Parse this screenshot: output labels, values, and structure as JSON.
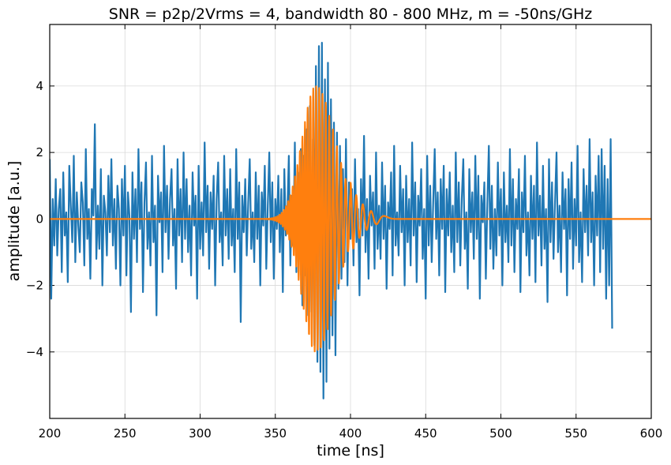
{
  "chart_data": {
    "type": "line",
    "title": "SNR = p2p/2Vrms = 4, bandwidth 80 - 800 MHz, m = -50ns/GHz",
    "xlabel": "time [ns]",
    "ylabel": "amplitude [a.u.]",
    "xlim": [
      200,
      600
    ],
    "ylim": [
      -6.0,
      5.85
    ],
    "x_ticks": [
      200,
      250,
      300,
      350,
      400,
      450,
      500,
      550,
      600
    ],
    "x_tick_labels": [
      "200",
      "250",
      "300",
      "350",
      "400",
      "450",
      "500",
      "550",
      "600"
    ],
    "y_ticks": [
      -4,
      -2,
      0,
      2,
      4
    ],
    "y_tick_labels": [
      "−4",
      "−2",
      "0",
      "2",
      "4"
    ],
    "grid": true,
    "legend": "none",
    "series": [
      {
        "color": "#1f77b4",
        "description_of_shape": "broadband noise around 0 with a dispersed pulse near 375 ns",
        "x_start": 200,
        "x_step": 1,
        "values": [
          1.8,
          -2.4,
          0.6,
          -0.8,
          1.2,
          -1.1,
          0.3,
          0.9,
          -1.6,
          1.4,
          -0.5,
          0.2,
          -1.9,
          1.6,
          0.4,
          -0.7,
          1.9,
          -1.3,
          0.8,
          -0.2,
          -1.0,
          1.1,
          0.5,
          -1.4,
          2.1,
          -0.6,
          0.3,
          -1.8,
          0.9,
          0.1,
          2.85,
          -1.2,
          0.4,
          -0.9,
          1.5,
          -2.0,
          0.7,
          0.2,
          -1.1,
          1.3,
          -0.4,
          1.8,
          -0.8,
          0.6,
          -1.5,
          1.0,
          0.3,
          -2.0,
          1.2,
          -0.5,
          1.6,
          -1.7,
          0.8,
          0.1,
          -2.8,
          1.4,
          -0.6,
          0.9,
          -1.3,
          2.1,
          -0.3,
          1.1,
          -2.2,
          0.5,
          1.7,
          -0.9,
          0.2,
          -1.4,
          1.9,
          -0.7,
          0.4,
          -2.9,
          1.3,
          -0.1,
          0.8,
          -1.6,
          2.2,
          -0.4,
          1.0,
          -1.2,
          0.6,
          1.5,
          -0.8,
          0.3,
          -2.1,
          1.8,
          -0.5,
          0.9,
          -1.3,
          2.0,
          -0.6,
          1.2,
          -1.0,
          0.4,
          -1.7,
          1.4,
          -0.2,
          0.7,
          -2.4,
          1.6,
          -0.9,
          0.5,
          -1.1,
          2.3,
          -0.4,
          1.0,
          -1.5,
          0.8,
          -0.3,
          1.3,
          -2.0,
          0.6,
          1.7,
          -0.7,
          0.2,
          -1.4,
          1.9,
          -0.5,
          0.9,
          -1.2,
          1.5,
          -0.8,
          0.3,
          -1.6,
          2.1,
          -0.6,
          1.1,
          -3.1,
          0.7,
          -0.4,
          1.2,
          -1.1,
          0.5,
          1.8,
          -0.9,
          0.2,
          -1.3,
          1.4,
          -0.6,
          1.0,
          -2.0,
          0.8,
          -0.2,
          1.6,
          -1.5,
          0.4,
          2.0,
          -0.7,
          1.1,
          -1.8,
          0.6,
          -0.3,
          1.3,
          -1.0,
          0.9,
          -2.2,
          1.5,
          -0.5,
          0.2,
          1.9,
          -1.4,
          0.7,
          -0.8,
          2.3,
          -1.6,
          1.4,
          -1.2,
          2.1,
          -2.6,
          1.9,
          -1.7,
          2.7,
          -2.9,
          3.4,
          -2.8,
          2.4,
          -3.8,
          4.6,
          -4.3,
          5.2,
          -4.6,
          5.3,
          -5.4,
          4.2,
          -4.9,
          4.7,
          -3.9,
          3.6,
          -3.5,
          2.9,
          -4.1,
          2.6,
          -2.1,
          2.2,
          -1.8,
          1.5,
          -1.3,
          2.4,
          -2.0,
          1.1,
          -0.6,
          0.9,
          -1.4,
          1.8,
          -0.7,
          0.3,
          -2.3,
          1.2,
          -0.5,
          2.5,
          -1.0,
          0.6,
          -1.8,
          1.3,
          -0.2,
          0.8,
          -1.5,
          2.0,
          -0.9,
          0.4,
          -1.2,
          1.7,
          -0.6,
          1.0,
          -2.1,
          0.5,
          -0.3,
          1.4,
          -1.7,
          2.2,
          -0.8,
          0.2,
          -1.1,
          1.6,
          -0.4,
          0.9,
          -2.0,
          1.3,
          -0.7,
          0.6,
          -1.4,
          2.3,
          -0.5,
          1.1,
          -1.9,
          0.7,
          -0.2,
          1.5,
          -1.2,
          0.3,
          -2.4,
          1.9,
          -0.8,
          1.0,
          -1.3,
          0.5,
          2.1,
          -0.6,
          0.8,
          -1.7,
          1.2,
          -0.3,
          1.6,
          -2.2,
          0.9,
          -0.5,
          1.4,
          -1.0,
          0.4,
          -1.6,
          2.0,
          -0.7,
          1.1,
          -1.4,
          0.6,
          1.8,
          -0.9,
          0.2,
          -2.1,
          1.5,
          -0.4,
          0.8,
          -1.2,
          1.9,
          -0.6,
          1.3,
          -2.4,
          0.7,
          -0.1,
          1.1,
          -1.8,
          0.5,
          2.2,
          -0.9,
          1.0,
          -1.5,
          0.3,
          -1.1,
          1.7,
          -0.5,
          0.9,
          -2.0,
          1.4,
          -0.7,
          0.4,
          -1.3,
          2.1,
          -0.8,
          1.2,
          -1.6,
          0.6,
          -0.3,
          1.5,
          -2.2,
          0.8,
          -0.4,
          1.9,
          -1.1,
          0.2,
          -1.7,
          1.3,
          -0.6,
          1.0,
          -1.9,
          2.3,
          -0.5,
          0.7,
          -1.4,
          1.6,
          -0.9,
          0.3,
          -2.5,
          1.8,
          -0.7,
          1.1,
          -1.2,
          0.5,
          2.0,
          -1.0,
          0.4,
          -1.6,
          1.4,
          -0.3,
          0.9,
          -2.3,
          1.2,
          -0.6,
          1.7,
          -1.5,
          0.6,
          -0.8,
          2.2,
          -1.3,
          0.2,
          -1.9,
          1.5,
          -0.4,
          1.0,
          -1.1,
          2.4,
          -0.7,
          0.8,
          -2.0,
          1.3,
          -0.5,
          1.9,
          -1.6,
          2.1,
          -0.9,
          1.6,
          -2.4,
          1.2,
          -2.0,
          2.4,
          -3.3
        ]
      },
      {
        "color": "#ff7f0e",
        "description_of_shape": "dispersed chirped pulse (chirp m = -50 ns/GHz), envelope peak amplitude ~4 at ~377 ns",
        "peak_time": 377,
        "peak_amplitude": 4.0,
        "start_time": 330,
        "end_time": 430
      }
    ]
  }
}
